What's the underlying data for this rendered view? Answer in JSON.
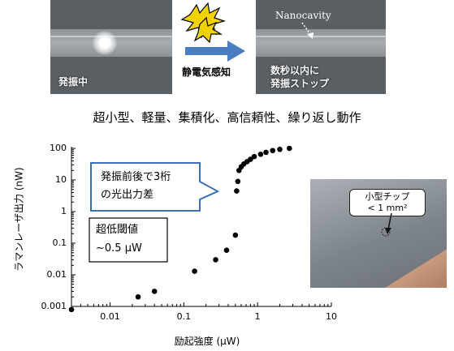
{
  "top": {
    "left_caption": "発振中",
    "arrow_label": "静電気感知",
    "right_label": "Nanocavity",
    "right_caption_line1": "数秒以内に",
    "right_caption_line2": "発振ストップ"
  },
  "subtitle": "超小型、軽量、集積化、高信頼性、繰り返し動作",
  "annotations": {
    "callout_line1": "発振前後で3桁",
    "callout_line2": "の光出力差",
    "box_line1": "超低閾値",
    "box_line2": "∼0.5 μW"
  },
  "photo": {
    "label_line1": "小型チップ",
    "label_line2": "< 1 mm²"
  },
  "colors": {
    "marker": "#000000",
    "callout_border": "#3b6fb6",
    "arrow": "#4a7dc0",
    "spark": "#f2d200"
  },
  "chart_data": {
    "type": "scatter",
    "xlabel": "励起強度 (μW)",
    "ylabel": "ラマンレーザ出力 (nW)",
    "xscale": "log",
    "yscale": "log",
    "xlim": [
      0.003,
      10
    ],
    "ylim": [
      0.001,
      100
    ],
    "xticks": [
      "0.01",
      "0.1",
      "1",
      "10"
    ],
    "yticks": [
      "0.001",
      "0.01",
      "0.1",
      "1",
      "10",
      "100"
    ],
    "x": [
      0.003,
      0.024,
      0.04,
      0.14,
      0.27,
      0.38,
      0.5,
      0.52,
      0.54,
      0.56,
      0.6,
      0.65,
      0.72,
      0.8,
      0.9,
      1.1,
      1.3,
      1.6,
      2.0,
      2.7
    ],
    "y": [
      0.0008,
      0.002,
      0.003,
      0.013,
      0.03,
      0.06,
      0.18,
      4.5,
      9,
      20,
      26,
      32,
      38,
      45,
      55,
      65,
      75,
      85,
      93,
      100
    ]
  }
}
